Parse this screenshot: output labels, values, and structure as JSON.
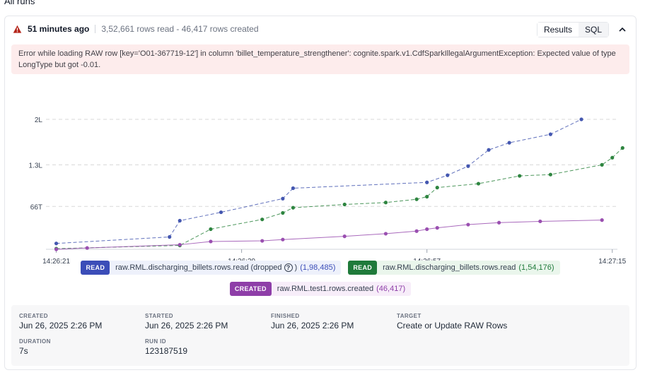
{
  "page": {
    "heading": "All runs"
  },
  "run": {
    "ago": "51 minutes ago",
    "summary": "3,52,661 rows read - 46,417 rows created",
    "error": "Error while loading RAW row [key='O01-367719-12'] in column 'billet_temperature_strengthener': cognite.spark.v1.CdfSparkIllegalArgumentException: Expected value of type LongType but got -0.01.",
    "tabs": {
      "results": "Results",
      "sql": "SQL"
    },
    "icons": {
      "status": "warning-triangle-icon",
      "collapse": "chevron-up-icon"
    },
    "colors": {
      "error_bg": "#fdecec",
      "warning": "#b42318"
    }
  },
  "legend": {
    "read_dropped": {
      "tag": "READ",
      "label": "raw.RML.discharging_billets.rows.read (dropped",
      "close": ")",
      "count": "(1,98,485)",
      "color": "#3b4db8",
      "bg": "#eef1fb"
    },
    "read": {
      "tag": "READ",
      "label": "raw.RML.discharging_billets.rows.read",
      "count": "(1,54,176)",
      "color": "#1f7a3a",
      "bg": "#eaf6ec"
    },
    "created": {
      "tag": "CREATED",
      "label": "raw.RML.test1.rows.created",
      "count": "(46,417)",
      "color": "#8e3ea8",
      "bg": "#f7edf9"
    }
  },
  "details": {
    "created": {
      "label": "CREATED",
      "value": "Jun 26, 2025 2:26 PM"
    },
    "started": {
      "label": "STARTED",
      "value": "Jun 26, 2025 2:26 PM"
    },
    "finished": {
      "label": "FINISHED",
      "value": "Jun 26, 2025 2:26 PM"
    },
    "target": {
      "label": "TARGET",
      "value": "Create or Update RAW Rows"
    },
    "duration": {
      "label": "DURATION",
      "value": "7s"
    },
    "run_id": {
      "label": "RUN ID",
      "value": "123187519"
    }
  },
  "chart_data": {
    "type": "line",
    "x_ticks": [
      0,
      18,
      36,
      54
    ],
    "x_tick_labels": [
      "14:26:21",
      "14:26:39",
      "14:26:57",
      "14:27:15"
    ],
    "y_ticks": [
      66000,
      130000,
      200000
    ],
    "y_tick_labels": [
      "66T",
      "1.3L",
      "2L"
    ],
    "xlim": [
      -1,
      54.5
    ],
    "ylim": [
      0,
      200000
    ],
    "grid": true,
    "series": [
      {
        "name": "raw.RML.discharging_billets.rows.read (dropped",
        "color": "#4457b0",
        "dashed": true,
        "x": [
          0,
          11,
          12,
          16,
          22,
          23,
          36,
          38,
          40,
          42,
          44,
          48,
          51
        ],
        "y": [
          9000,
          19000,
          44000,
          57000,
          78000,
          94000,
          103000,
          114000,
          128000,
          153000,
          164000,
          177000,
          200000
        ]
      },
      {
        "name": "raw.RML.discharging_billets.rows.read",
        "color": "#2e8540",
        "dashed": true,
        "x": [
          0,
          12,
          15,
          20,
          22,
          23,
          28,
          32,
          35,
          36,
          37,
          41,
          45,
          48,
          53,
          54,
          55
        ],
        "y": [
          1000,
          6000,
          31000,
          46000,
          56000,
          64000,
          69000,
          72000,
          77000,
          81000,
          95000,
          101000,
          113000,
          115000,
          130000,
          141000,
          156000
        ]
      },
      {
        "name": "raw.RML.test1.rows.created",
        "color": "#9a4fb0",
        "dashed": false,
        "x": [
          0,
          3,
          12,
          15,
          20,
          22,
          28,
          32,
          35,
          36,
          37,
          40,
          43,
          47,
          53
        ],
        "y": [
          0,
          2000,
          7000,
          12000,
          13000,
          15000,
          20000,
          24000,
          28000,
          31000,
          33000,
          38000,
          41000,
          43000,
          45000
        ]
      }
    ]
  }
}
